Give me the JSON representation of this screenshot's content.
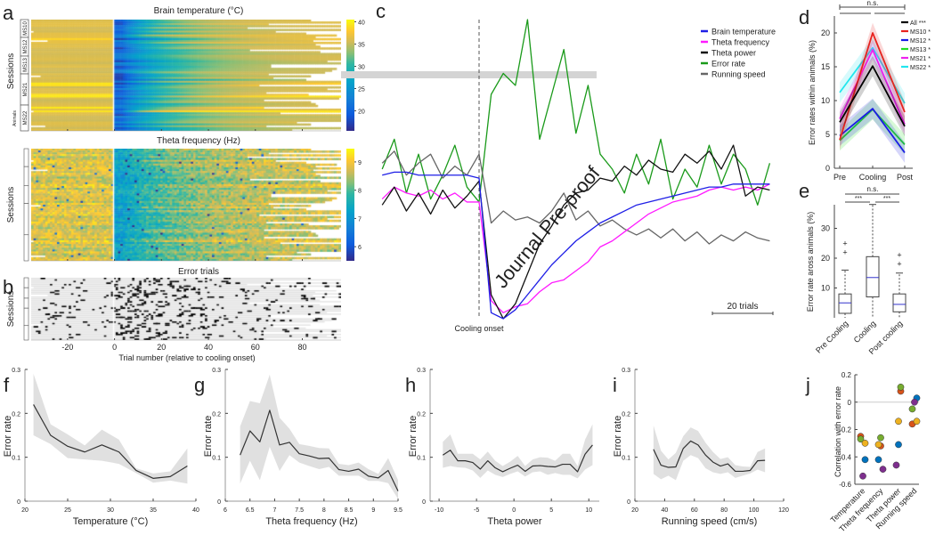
{
  "panel_letters": [
    "a",
    "b",
    "c",
    "d",
    "e",
    "f",
    "g",
    "h",
    "i",
    "j"
  ],
  "chart_data": [
    {
      "id": "a1",
      "type": "heatmap",
      "title": "Brain temperature (°C)",
      "ylabel": "Sessions",
      "group_label": "Animals",
      "animals": [
        "MS10",
        "MS12",
        "MS13",
        "MS21",
        "MS22"
      ],
      "colorbar": {
        "ticks": [
          20,
          25,
          30,
          35,
          40
        ],
        "range": [
          15.5,
          40.5
        ]
      },
      "xrange": [
        -35,
        96
      ]
    },
    {
      "id": "a2",
      "type": "heatmap",
      "title": "Theta frequency (Hz)",
      "ylabel": "Sessions",
      "colorbar": {
        "ticks": [
          6,
          7,
          8,
          9
        ],
        "range": [
          5.5,
          9.47
        ]
      },
      "xrange": [
        -35,
        96
      ]
    },
    {
      "id": "b",
      "type": "heatmap",
      "title": "Error trials",
      "ylabel": "Sessions",
      "xlabel": "Trial number (relative to cooling onset)",
      "xticks": [
        -20,
        0,
        20,
        40,
        60,
        80
      ],
      "xrange": [
        -35,
        96
      ]
    },
    {
      "id": "c",
      "type": "line",
      "x_unit": "trials",
      "x": [
        -32,
        -28,
        -24,
        -20,
        -16,
        -12,
        -8,
        -4,
        0,
        4,
        8,
        12,
        16,
        20,
        24,
        28,
        32,
        36,
        40,
        44,
        48,
        52,
        56,
        60,
        64,
        68,
        72,
        76,
        80,
        84,
        88,
        92,
        96
      ],
      "y_unit": "normalized",
      "ylim": [
        0,
        1
      ],
      "series": [
        {
          "name": "Brain temperature",
          "color": "#1f1fe6",
          "values": [
            0.48,
            0.49,
            0.49,
            0.48,
            0.48,
            0.48,
            0.48,
            0.48,
            0.47,
            0.02,
            0.0,
            0.03,
            0.08,
            0.13,
            0.18,
            0.22,
            0.26,
            0.29,
            0.32,
            0.34,
            0.36,
            0.38,
            0.39,
            0.4,
            0.41,
            0.42,
            0.43,
            0.44,
            0.44,
            0.45,
            0.45,
            0.45,
            0.45
          ]
        },
        {
          "name": "Theta frequency",
          "color": "#ff1aff",
          "values": [
            0.4,
            0.44,
            0.42,
            0.41,
            0.43,
            0.4,
            0.42,
            0.39,
            0.39,
            0.06,
            0.02,
            0.04,
            0.05,
            0.09,
            0.12,
            0.13,
            0.16,
            0.19,
            0.24,
            0.26,
            0.29,
            0.32,
            0.35,
            0.37,
            0.39,
            0.4,
            0.41,
            0.43,
            0.44,
            0.43,
            0.44,
            0.43,
            0.45
          ]
        },
        {
          "name": "Theta power",
          "color": "#111111",
          "values": [
            0.38,
            0.44,
            0.36,
            0.42,
            0.35,
            0.43,
            0.37,
            0.41,
            0.46,
            0.08,
            0.0,
            0.05,
            0.15,
            0.25,
            0.31,
            0.38,
            0.42,
            0.43,
            0.47,
            0.46,
            0.51,
            0.48,
            0.53,
            0.5,
            0.49,
            0.55,
            0.52,
            0.56,
            0.5,
            0.58,
            0.41,
            0.44,
            0.43
          ]
        },
        {
          "name": "Error rate",
          "color": "#1a9a1a",
          "values": [
            0.5,
            0.6,
            0.42,
            0.55,
            0.4,
            0.48,
            0.58,
            0.44,
            0.39,
            0.75,
            0.82,
            0.78,
            1.0,
            0.6,
            0.75,
            0.9,
            0.62,
            0.78,
            0.55,
            0.5,
            0.42,
            0.55,
            0.45,
            0.6,
            0.4,
            0.5,
            0.44,
            0.58,
            0.45,
            0.55,
            0.5,
            0.38,
            0.52
          ]
        },
        {
          "name": "Running speed",
          "color": "#666666",
          "values": [
            0.52,
            0.56,
            0.48,
            0.52,
            0.55,
            0.47,
            0.51,
            0.48,
            0.55,
            0.32,
            0.36,
            0.33,
            0.34,
            0.32,
            0.36,
            0.42,
            0.33,
            0.36,
            0.31,
            0.33,
            0.3,
            0.28,
            0.3,
            0.27,
            0.3,
            0.26,
            0.29,
            0.25,
            0.28,
            0.26,
            0.29,
            0.27,
            0.26
          ]
        }
      ],
      "annotations": {
        "onset": "Cooling onset",
        "scalebar": "20 trials",
        "scalebar_trials": 20,
        "watermark": "Journal Pre-proof"
      },
      "legend": "top-right"
    },
    {
      "id": "d",
      "type": "line",
      "categories": [
        "Pre",
        "Cooling",
        "Post"
      ],
      "ylabel": "Error rates within animals (%)",
      "ylim": [
        0,
        22.5
      ],
      "yticks": [
        0,
        5,
        10,
        15,
        20
      ],
      "series": [
        {
          "name": "All ***",
          "color": "#000000",
          "values": [
            6.8,
            15.1,
            6.2
          ]
        },
        {
          "name": "MS10 *",
          "color": "#e8231f",
          "values": [
            4.2,
            20.0,
            8.3
          ]
        },
        {
          "name": "MS12 *",
          "color": "#1a1ae6",
          "values": [
            4.8,
            8.8,
            2.3
          ]
        },
        {
          "name": "MS13 *",
          "color": "#22dd22",
          "values": [
            4.1,
            8.7,
            3.5
          ]
        },
        {
          "name": "MS21 *",
          "color": "#ee22ee",
          "values": [
            7.3,
            17.5,
            6.5
          ]
        },
        {
          "name": "MS22 *",
          "color": "#22e6ee",
          "values": [
            11.2,
            17.8,
            9.6
          ]
        }
      ],
      "significance": [
        {
          "pair": [
            "Pre",
            "Post"
          ],
          "label": "n.s."
        }
      ],
      "legend": "top-right"
    },
    {
      "id": "e",
      "type": "box",
      "categories": [
        "Pre Cooling",
        "Cooling",
        "Post cooling"
      ],
      "ylabel": "Error rate aross animals (%)",
      "ylim": [
        0,
        38
      ],
      "yticks": [
        10,
        20,
        30
      ],
      "boxes": [
        {
          "min": 0,
          "q1": 1.5,
          "median": 5,
          "q3": 8,
          "max": 16,
          "outliers": [
            22,
            25
          ]
        },
        {
          "min": 0,
          "q1": 7,
          "median": 13.5,
          "q3": 20.5,
          "max": 38,
          "outliers": []
        },
        {
          "min": 0,
          "q1": 2,
          "median": 4.5,
          "q3": 8,
          "max": 15,
          "outliers": [
            18,
            21
          ]
        }
      ],
      "significance": [
        {
          "pair": [
            0,
            2
          ],
          "label": "n.s."
        },
        {
          "pair": [
            0,
            1
          ],
          "label": "***"
        },
        {
          "pair": [
            1,
            2
          ],
          "label": "***"
        }
      ]
    },
    {
      "id": "f",
      "type": "line",
      "xlabel": "Temperature (°C)",
      "ylabel": "Error rate",
      "xlim": [
        20,
        40
      ],
      "ylim": [
        0,
        0.3
      ],
      "xticks": [
        20,
        25,
        30,
        35,
        40
      ],
      "yticks": [
        0,
        0.1,
        0.2,
        0.3
      ],
      "x": [
        21,
        23,
        25,
        27,
        29,
        31,
        33,
        35,
        37,
        39
      ],
      "y": [
        0.22,
        0.15,
        0.125,
        0.112,
        0.128,
        0.112,
        0.07,
        0.052,
        0.056,
        0.08
      ],
      "lower": [
        0.15,
        0.13,
        0.098,
        0.095,
        0.092,
        0.085,
        0.064,
        0.042,
        0.047,
        0.04
      ],
      "upper": [
        0.29,
        0.175,
        0.152,
        0.127,
        0.163,
        0.14,
        0.075,
        0.063,
        0.068,
        0.12
      ]
    },
    {
      "id": "g",
      "type": "line",
      "xlabel": "Theta frequency (Hz)",
      "ylabel": "Error rate",
      "xlim": [
        6,
        9.5
      ],
      "ylim": [
        0,
        0.3
      ],
      "xticks": [
        6,
        6.5,
        7,
        7.5,
        8,
        8.5,
        9,
        9.5
      ],
      "yticks": [
        0,
        0.1,
        0.2,
        0.3
      ],
      "x": [
        6.3,
        6.5,
        6.7,
        6.9,
        7.1,
        7.3,
        7.5,
        7.7,
        7.9,
        8.1,
        8.3,
        8.5,
        8.7,
        8.9,
        9.1,
        9.3,
        9.5
      ],
      "y": [
        0.105,
        0.16,
        0.135,
        0.207,
        0.128,
        0.134,
        0.108,
        0.103,
        0.097,
        0.098,
        0.072,
        0.068,
        0.073,
        0.057,
        0.053,
        0.07,
        0.023
      ],
      "lower": [
        0.04,
        0.092,
        0.048,
        0.124,
        0.069,
        0.105,
        0.088,
        0.08,
        0.073,
        0.078,
        0.058,
        0.058,
        0.058,
        0.046,
        0.046,
        0.041,
        0.005
      ],
      "upper": [
        0.17,
        0.228,
        0.223,
        0.288,
        0.19,
        0.165,
        0.13,
        0.126,
        0.121,
        0.12,
        0.085,
        0.082,
        0.088,
        0.073,
        0.062,
        0.098,
        0.048
      ]
    },
    {
      "id": "h",
      "type": "line",
      "xlabel": "Theta power",
      "ylabel": "Error rate",
      "xlim": [
        -11.2,
        11.4
      ],
      "ylim": [
        0,
        0.3
      ],
      "xticks": [
        -10,
        -5,
        0,
        5,
        10
      ],
      "yticks": [
        0,
        0.1,
        0.2,
        0.3
      ],
      "x": [
        -9.5,
        -8.5,
        -7.5,
        -6.5,
        -5.5,
        -4.5,
        -3.5,
        -2.5,
        -1.5,
        -0.5,
        0.5,
        1.5,
        2.5,
        3.5,
        4.5,
        5.5,
        6.5,
        7.5,
        8.5,
        9.5,
        10.5
      ],
      "y": [
        0.105,
        0.116,
        0.092,
        0.092,
        0.088,
        0.073,
        0.092,
        0.076,
        0.067,
        0.075,
        0.082,
        0.068,
        0.08,
        0.081,
        0.079,
        0.078,
        0.084,
        0.084,
        0.067,
        0.107,
        0.128
      ],
      "lower": [
        0.076,
        0.08,
        0.077,
        0.076,
        0.07,
        0.053,
        0.07,
        0.06,
        0.055,
        0.062,
        0.068,
        0.056,
        0.066,
        0.068,
        0.06,
        0.064,
        0.06,
        0.06,
        0.052,
        0.072,
        0.082
      ],
      "upper": [
        0.135,
        0.152,
        0.108,
        0.108,
        0.108,
        0.095,
        0.113,
        0.092,
        0.08,
        0.09,
        0.103,
        0.08,
        0.095,
        0.1,
        0.099,
        0.092,
        0.108,
        0.108,
        0.08,
        0.14,
        0.175
      ]
    },
    {
      "id": "i",
      "type": "line",
      "xlabel": "Running speed (cm/s)",
      "ylabel": "Error rate",
      "xlim": [
        20,
        120
      ],
      "ylim": [
        0,
        0.3
      ],
      "xticks": [
        20,
        40,
        60,
        80,
        100,
        120
      ],
      "yticks": [
        0,
        0.1,
        0.2,
        0.3
      ],
      "x": [
        32.5,
        37.5,
        42.5,
        47.5,
        52.5,
        57.5,
        62.5,
        67.5,
        72.5,
        77.5,
        82.5,
        87.5,
        92.5,
        97.5,
        102.5,
        107.5
      ],
      "y": [
        0.118,
        0.082,
        0.077,
        0.078,
        0.12,
        0.137,
        0.128,
        0.105,
        0.089,
        0.08,
        0.085,
        0.068,
        0.068,
        0.07,
        0.092,
        0.093
      ],
      "lower": [
        0.062,
        0.05,
        0.058,
        0.048,
        0.092,
        0.105,
        0.098,
        0.075,
        0.066,
        0.062,
        0.066,
        0.053,
        0.058,
        0.063,
        0.072,
        0.066
      ],
      "upper": [
        0.172,
        0.115,
        0.095,
        0.11,
        0.148,
        0.168,
        0.16,
        0.133,
        0.112,
        0.096,
        0.1,
        0.082,
        0.079,
        0.078,
        0.112,
        0.12
      ]
    },
    {
      "id": "j",
      "type": "scatter",
      "categories": [
        "Temperature",
        "Theta frequency",
        "Theta power",
        "Running speed"
      ],
      "ylabel": "Correlation with error rate",
      "ylim": [
        -0.6,
        0.2
      ],
      "yticks": [
        -0.6,
        -0.4,
        -0.2,
        0,
        0.2
      ],
      "series": [
        {
          "name": "MS10",
          "color": "#D95319",
          "values": [
            -0.25,
            -0.32,
            0.08,
            -0.16
          ]
        },
        {
          "name": "MS12",
          "color": "#0072BD",
          "values": [
            -0.42,
            -0.42,
            -0.31,
            0.03
          ]
        },
        {
          "name": "MS13",
          "color": "#77AC30",
          "values": [
            -0.27,
            -0.26,
            0.11,
            -0.05
          ]
        },
        {
          "name": "MS21",
          "color": "#7E2F8E",
          "values": [
            -0.54,
            -0.49,
            -0.46,
            0.0
          ]
        },
        {
          "name": "MS22",
          "color": "#EDB120",
          "values": [
            -0.3,
            -0.31,
            -0.14,
            -0.14
          ]
        }
      ]
    }
  ]
}
